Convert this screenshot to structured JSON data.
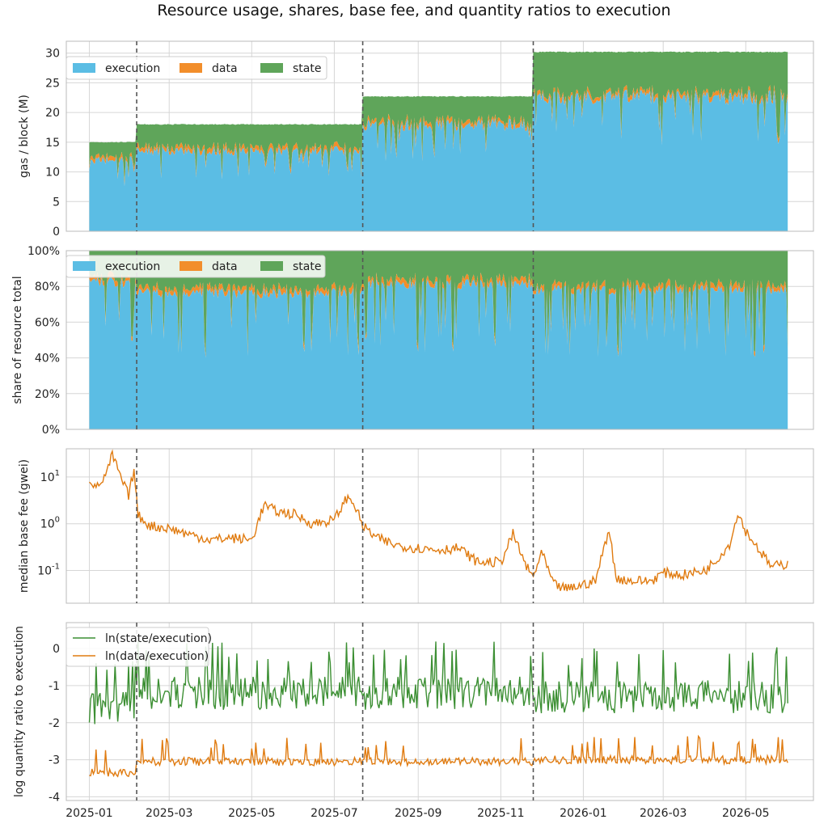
{
  "figure_title": "Resource usage, shares, base fee, and quantity ratios to execution",
  "x_ticks": [
    "2025-01",
    "2025-03",
    "2025-05",
    "2025-07",
    "2025-09",
    "2025-11",
    "2026-01",
    "2026-03",
    "2026-05"
  ],
  "colors": {
    "execution": "#5bbde4",
    "data": "#f28e2b",
    "state": "#5fa55a",
    "state_line": "#3c8f33",
    "data_line": "#e07b10",
    "vline": "#555555",
    "grid": "#d6d6d6"
  },
  "chart_data": [
    {
      "type": "area",
      "stacked": true,
      "ylabel": "gas / block (M)",
      "ylim": [
        0,
        32
      ],
      "y_ticks": [
        "0",
        "5",
        "10",
        "15",
        "20",
        "25",
        "30"
      ],
      "x_range": [
        "2025-01-01",
        "2026-06-01"
      ],
      "legend": {
        "placement": "top-left",
        "entries": [
          "execution",
          "data",
          "state"
        ]
      },
      "capacity_steps": [
        {
          "from": "2025-01-01",
          "to": "2025-02-05",
          "total": 15.0
        },
        {
          "from": "2025-02-05",
          "to": "2025-07-22",
          "total": 18.0
        },
        {
          "from": "2025-07-22",
          "to": "2025-11-25",
          "total": 22.7
        },
        {
          "from": "2025-11-25",
          "to": "2026-06-01",
          "total": 30.2
        }
      ],
      "series": [
        {
          "name": "execution",
          "approx_level": [
            {
              "from": "2025-01-01",
              "to": "2025-02-05",
              "value": 12.2
            },
            {
              "from": "2025-02-05",
              "to": "2025-07-22",
              "value": 13.8
            },
            {
              "from": "2025-07-22",
              "to": "2025-11-25",
              "value": 18.3
            },
            {
              "from": "2025-11-25",
              "to": "2026-06-01",
              "value": 23.0
            }
          ]
        },
        {
          "name": "data",
          "approx_level": 0.6
        },
        {
          "name": "state",
          "approx_level": "remainder to total"
        }
      ],
      "grid": true
    },
    {
      "type": "area",
      "stacked": true,
      "ylabel": "share of resource total",
      "ylim": [
        0,
        100
      ],
      "y_ticks": [
        "0%",
        "20%",
        "40%",
        "60%",
        "80%",
        "100%"
      ],
      "legend": {
        "placement": "top-left",
        "entries": [
          "execution",
          "data",
          "state"
        ]
      },
      "series": [
        {
          "name": "execution",
          "approx_share": [
            {
              "from": "2025-01-01",
              "to": "2025-02-05",
              "value": 81
            },
            {
              "from": "2025-02-05",
              "to": "2025-07-22",
              "value": 75
            },
            {
              "from": "2025-07-22",
              "to": "2025-11-25",
              "value": 80
            },
            {
              "from": "2025-11-25",
              "to": "2026-06-01",
              "value": 77
            }
          ]
        },
        {
          "name": "data",
          "approx_share": 2.5
        },
        {
          "name": "state",
          "approx_share": "remainder to 100"
        }
      ],
      "grid": true
    },
    {
      "type": "line",
      "log_scale": true,
      "ylabel": "median base fee (gwei)",
      "ylim": [
        0.02,
        40
      ],
      "y_ticks": [
        "10^-1",
        "10^0",
        "10^1"
      ],
      "series": [
        {
          "name": "base fee",
          "points": [
            [
              "2025-01-01",
              9
            ],
            [
              "2025-01-07",
              6
            ],
            [
              "2025-01-14",
              12
            ],
            [
              "2025-01-18",
              30
            ],
            [
              "2025-01-24",
              10
            ],
            [
              "2025-01-30",
              4
            ],
            [
              "2025-02-03",
              14
            ],
            [
              "2025-02-06",
              1.5
            ],
            [
              "2025-02-15",
              0.9
            ],
            [
              "2025-03-01",
              0.8
            ],
            [
              "2025-03-15",
              0.6
            ],
            [
              "2025-04-01",
              0.45
            ],
            [
              "2025-04-15",
              0.5
            ],
            [
              "2025-05-01",
              0.45
            ],
            [
              "2025-05-10",
              2.5
            ],
            [
              "2025-05-20",
              1.8
            ],
            [
              "2025-06-01",
              1.6
            ],
            [
              "2025-06-15",
              1.0
            ],
            [
              "2025-07-01",
              1.2
            ],
            [
              "2025-07-10",
              3.5
            ],
            [
              "2025-07-15",
              3.0
            ],
            [
              "2025-07-22",
              0.9
            ],
            [
              "2025-08-01",
              0.5
            ],
            [
              "2025-08-15",
              0.35
            ],
            [
              "2025-09-01",
              0.3
            ],
            [
              "2025-09-15",
              0.28
            ],
            [
              "2025-10-01",
              0.3
            ],
            [
              "2025-10-15",
              0.15
            ],
            [
              "2025-11-01",
              0.15
            ],
            [
              "2025-11-10",
              0.6
            ],
            [
              "2025-11-20",
              0.12
            ],
            [
              "2025-11-25",
              0.07
            ],
            [
              "2025-12-01",
              0.25
            ],
            [
              "2025-12-10",
              0.05
            ],
            [
              "2025-12-20",
              0.04
            ],
            [
              "2026-01-01",
              0.05
            ],
            [
              "2026-01-10",
              0.06
            ],
            [
              "2026-01-20",
              0.8
            ],
            [
              "2026-01-25",
              0.07
            ],
            [
              "2026-02-05",
              0.06
            ],
            [
              "2026-02-20",
              0.06
            ],
            [
              "2026-03-01",
              0.09
            ],
            [
              "2026-03-15",
              0.08
            ],
            [
              "2026-04-01",
              0.1
            ],
            [
              "2026-04-10",
              0.18
            ],
            [
              "2026-04-20",
              0.4
            ],
            [
              "2026-04-25",
              1.8
            ],
            [
              "2026-05-01",
              0.7
            ],
            [
              "2026-05-10",
              0.3
            ],
            [
              "2026-05-20",
              0.12
            ],
            [
              "2026-06-01",
              0.14
            ]
          ]
        }
      ],
      "grid": true
    },
    {
      "type": "line",
      "ylabel": "log quantity ratio to execution",
      "ylim": [
        -4.1,
        0.7
      ],
      "y_ticks": [
        "-4",
        "-3",
        "-2",
        "-1",
        "0"
      ],
      "legend": {
        "placement": "top-left",
        "entries": [
          "ln(state/execution)",
          "ln(data/execution)"
        ]
      },
      "series": [
        {
          "name": "ln(state/execution)",
          "approx_level": [
            {
              "from": "2025-01-01",
              "to": "2025-02-05",
              "value": -1.6
            },
            {
              "from": "2025-02-05",
              "to": "2025-07-22",
              "value": -1.2
            },
            {
              "from": "2025-07-22",
              "to": "2025-11-25",
              "value": -1.2
            },
            {
              "from": "2025-11-25",
              "to": "2026-06-01",
              "value": -1.3
            }
          ],
          "peak": 0.5,
          "trough": -2.6
        },
        {
          "name": "ln(data/execution)",
          "approx_level": [
            {
              "from": "2025-01-01",
              "to": "2025-02-05",
              "value": -3.35
            },
            {
              "from": "2025-02-05",
              "to": "2025-07-22",
              "value": -3.05
            },
            {
              "from": "2025-07-22",
              "to": "2025-11-25",
              "value": -3.05
            },
            {
              "from": "2025-11-25",
              "to": "2026-06-01",
              "value": -3.0
            }
          ],
          "peak": -2.3,
          "trough": -3.85
        }
      ],
      "grid": true
    }
  ],
  "event_lines": [
    "2025-02-05",
    "2025-07-22",
    "2025-11-25"
  ]
}
